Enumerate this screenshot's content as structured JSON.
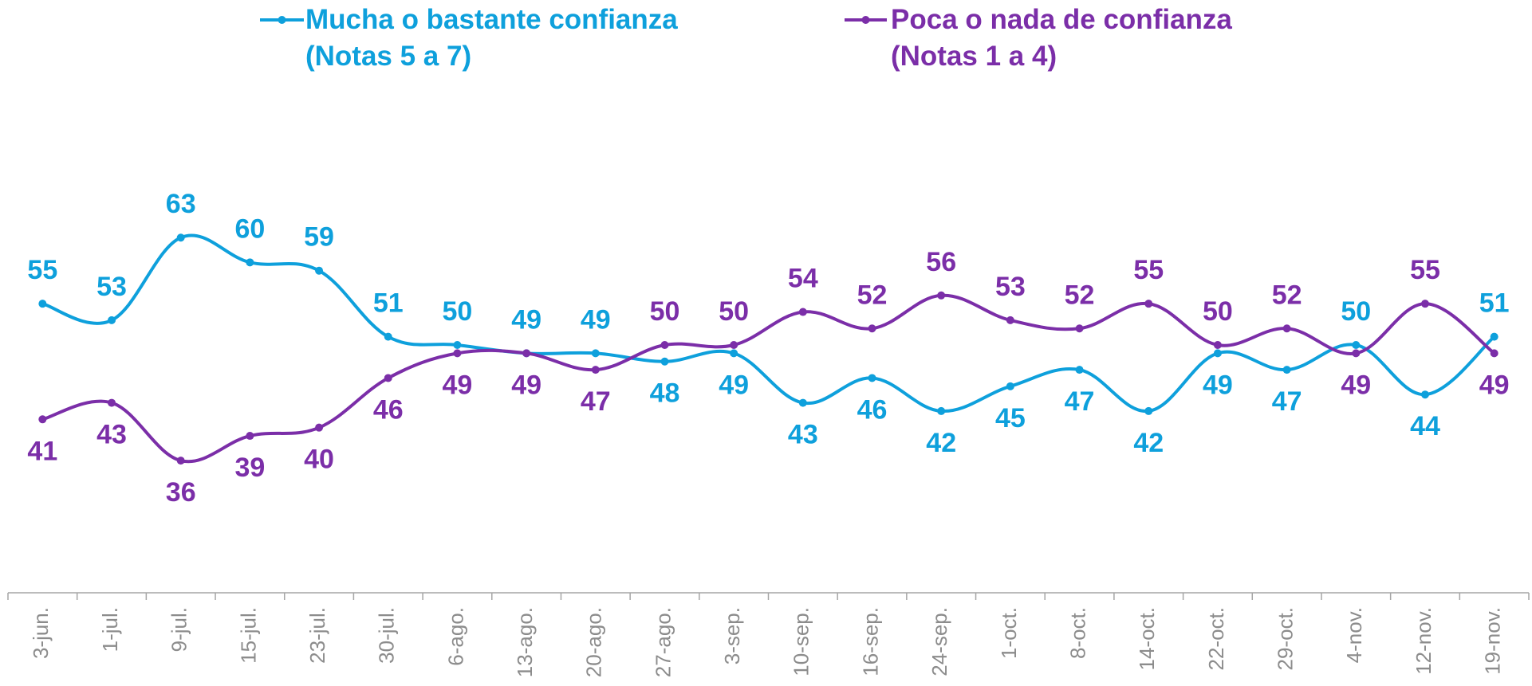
{
  "chart_data": {
    "type": "line",
    "categories": [
      "3-jun.",
      "1-jul.",
      "9-jul.",
      "15-jul.",
      "23-jul.",
      "30-jul.",
      "6-ago.",
      "13-ago.",
      "20-ago.",
      "27-ago.",
      "3-sep.",
      "10-sep.",
      "16-sep.",
      "24-sep.",
      "1-oct.",
      "8-oct.",
      "14-oct.",
      "22-oct.",
      "29-oct.",
      "4-nov.",
      "12-nov.",
      "19-nov."
    ],
    "series": [
      {
        "name": "Mucha o bastante confianza\n(Notas 5 a 7)",
        "color": "#0ea0dc",
        "values": [
          55,
          53,
          63,
          60,
          59,
          51,
          50,
          49,
          49,
          48,
          49,
          43,
          46,
          42,
          45,
          47,
          42,
          49,
          47,
          50,
          44,
          51
        ]
      },
      {
        "name": "Poca o nada de confianza\n(Notas 1 a 4)",
        "color": "#7b2ea8",
        "values": [
          41,
          43,
          36,
          39,
          40,
          46,
          49,
          49,
          47,
          50,
          50,
          54,
          52,
          56,
          53,
          52,
          55,
          50,
          52,
          49,
          55,
          49
        ]
      }
    ],
    "ylim": [
      20,
      80
    ]
  }
}
